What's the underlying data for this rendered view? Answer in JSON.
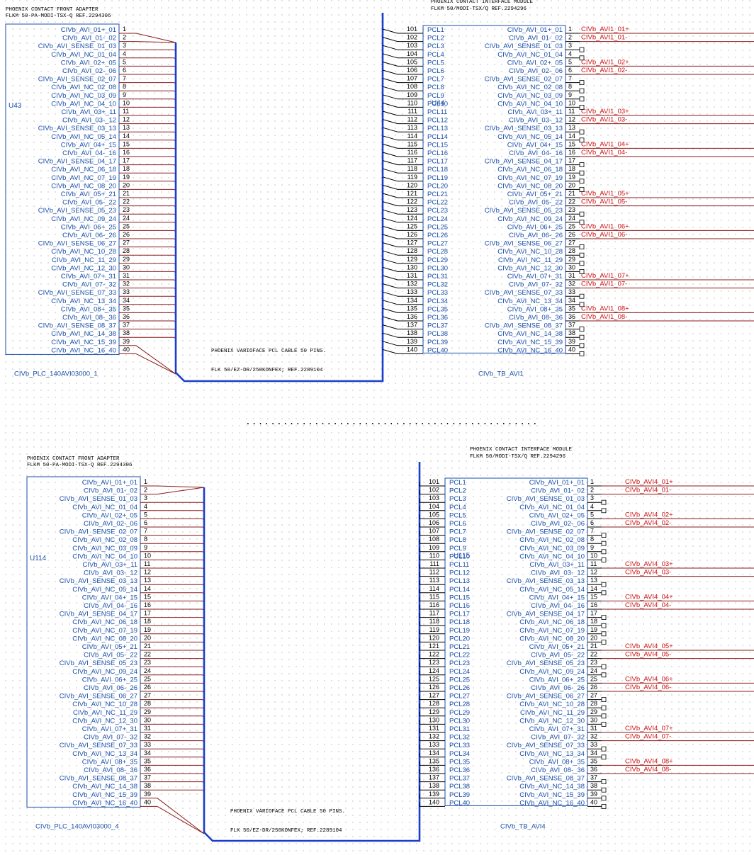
{
  "colors": {
    "signal": "#1a4fa8",
    "net": "#cc1111",
    "bus": "#1a3ecc",
    "wire": "#8b1a1a",
    "text": "#000000"
  },
  "separator": "...............................................",
  "adapter_pin_labels": [
    "CIVb_AVI_01+_01",
    "CIVb_AVI_01-_02",
    "CIVb_AVI_SENSE_01_03",
    "CIVb_AVI_NC_01_04",
    "CIVb_AVI_02+_05",
    "CIVb_AVI_02-_06",
    "CIVb_AVI_SENSE_02_07",
    "CIVb_AVI_NC_02_08",
    "CIVb_AVI_NC_03_09",
    "CIVb_AVI_NC_04_10",
    "CIVb_AVI_03+_11",
    "CIVb_AVI_03-_12",
    "CIVb_AVI_SENSE_03_13",
    "CIVb_AVI_NC_05_14",
    "CIVb_AVI_04+_15",
    "CIVb_AVI_04-_16",
    "CIVb_AVI_SENSE_04_17",
    "CIVb_AVI_NC_06_18",
    "CIVb_AVI_NC_07_19",
    "CIVb_AVI_NC_08_20",
    "CIVb_AVI_05+_21",
    "CIVb_AVI_05-_22",
    "CIVb_AVI_SENSE_05_23",
    "CIVb_AVI_NC_09_24",
    "CIVb_AVI_06+_25",
    "CIVb_AVI_06-_26",
    "CIVb_AVI_SENSE_06_27",
    "CIVb_AVI_NC_10_28",
    "CIVb_AVI_NC_11_29",
    "CIVb_AVI_NC_12_30",
    "CIVb_AVI_07+_31",
    "CIVb_AVI_07-_32",
    "CIVb_AVI_SENSE_07_33",
    "CIVb_AVI_NC_13_34",
    "CIVb_AVI_08+_35",
    "CIVb_AVI_08-_36",
    "CIVb_AVI_SENSE_08_37",
    "CIVb_AVI_NC_14_38",
    "CIVb_AVI_NC_15_39",
    "CIVb_AVI_NC_16_40"
  ],
  "module_pin_numbers_left": [
    "101",
    "102",
    "103",
    "104",
    "105",
    "106",
    "107",
    "108",
    "109",
    "110",
    "111",
    "112",
    "113",
    "114",
    "115",
    "116",
    "117",
    "118",
    "119",
    "120",
    "121",
    "122",
    "123",
    "124",
    "125",
    "126",
    "127",
    "128",
    "129",
    "130",
    "131",
    "132",
    "133",
    "134",
    "135",
    "136",
    "137",
    "138",
    "139",
    "140"
  ],
  "module_pcl_labels": [
    "PCL1",
    "PCL2",
    "PCL3",
    "PCL4",
    "PCL5",
    "PCL6",
    "PCL7",
    "PCL8",
    "PCL9",
    "PCL10",
    "PCL11",
    "PCL12",
    "PCL13",
    "PCL14",
    "PCL15",
    "PCL16",
    "PCL17",
    "PCL18",
    "PCL19",
    "PCL20",
    "PCL21",
    "PCL22",
    "PCL23",
    "PCL24",
    "PCL25",
    "PCL26",
    "PCL27",
    "PCL28",
    "PCL29",
    "PCL30",
    "PCL31",
    "PCL32",
    "PCL33",
    "PCL34",
    "PCL35",
    "PCL36",
    "PCL37",
    "PCL38",
    "PCL39",
    "PCL40"
  ],
  "sections": [
    {
      "adapter": {
        "title1": "PHOENIX CONTACT FRONT ADAPTER",
        "title2": "FLKM 50-PA-MODI-TSX-Q  REF.2294306",
        "ref": "U43",
        "name": "CIVb_PLC_140AVI03000_1"
      },
      "cable": {
        "line1": "PHOENIX VARIOFACE PCL CABLE 50 PINS.",
        "line2": "FLK 50/EZ-DR/250KONFEX; REF.2289104"
      },
      "module": {
        "title1": "PHOENIX CONTACT INTERFACE MODULE",
        "title2": "FLKM 50/MODI-TSX/Q REF.2294296",
        "ref": "U44",
        "name": "CIVb_TB_AVI1"
      },
      "nets": [
        "CIVb_AVI1_01+",
        "CIVb_AVI1_01-",
        "CIVb_AVI1_02+",
        "CIVb_AVI1_02-",
        "CIVb_AVI1_03+",
        "CIVb_AVI1_03-",
        "CIVb_AVI1_04+",
        "CIVb_AVI1_04-",
        "CIVb_AVI1_05+",
        "CIVb_AVI1_05-",
        "CIVb_AVI1_06+",
        "CIVb_AVI1_06-",
        "CIVb_AVI1_07+",
        "CIVb_AVI1_07-",
        "CIVb_AVI1_08+",
        "CIVb_AVI1_08-"
      ]
    },
    {
      "adapter": {
        "title1": "PHOENIX CONTACT FRONT ADAPTER",
        "title2": "FLKM 50-PA-MODI-TSX-Q  REF.2294306",
        "ref": "U114",
        "name": "CIVb_PLC_140AVI03000_4"
      },
      "cable": {
        "line1": "PHOENIX VARIOFACE PCL CABLE 50 PINS.",
        "line2": "FLK 50/EZ-DR/250KONFEX; REF.2289104"
      },
      "module": {
        "title1": "PHOENIX CONTACT INTERFACE MODULE",
        "title2": "FLKM 50/MODI-TSX/Q REF.2294296",
        "ref": "U115",
        "name": "CIVb_TB_AVI4"
      },
      "nets": [
        "CIVb_AVI4_01+",
        "CIVb_AVI4_01-",
        "CIVb_AVI4_02+",
        "CIVb_AVI4_02-",
        "CIVb_AVI4_03+",
        "CIVb_AVI4_03-",
        "CIVb_AVI4_04+",
        "CIVb_AVI4_04-",
        "CIVb_AVI4_05+",
        "CIVb_AVI4_05-",
        "CIVb_AVI4_06+",
        "CIVb_AVI4_06-",
        "CIVb_AVI4_07+",
        "CIVb_AVI4_07-",
        "CIVb_AVI4_08+",
        "CIVb_AVI4_08-"
      ]
    }
  ]
}
